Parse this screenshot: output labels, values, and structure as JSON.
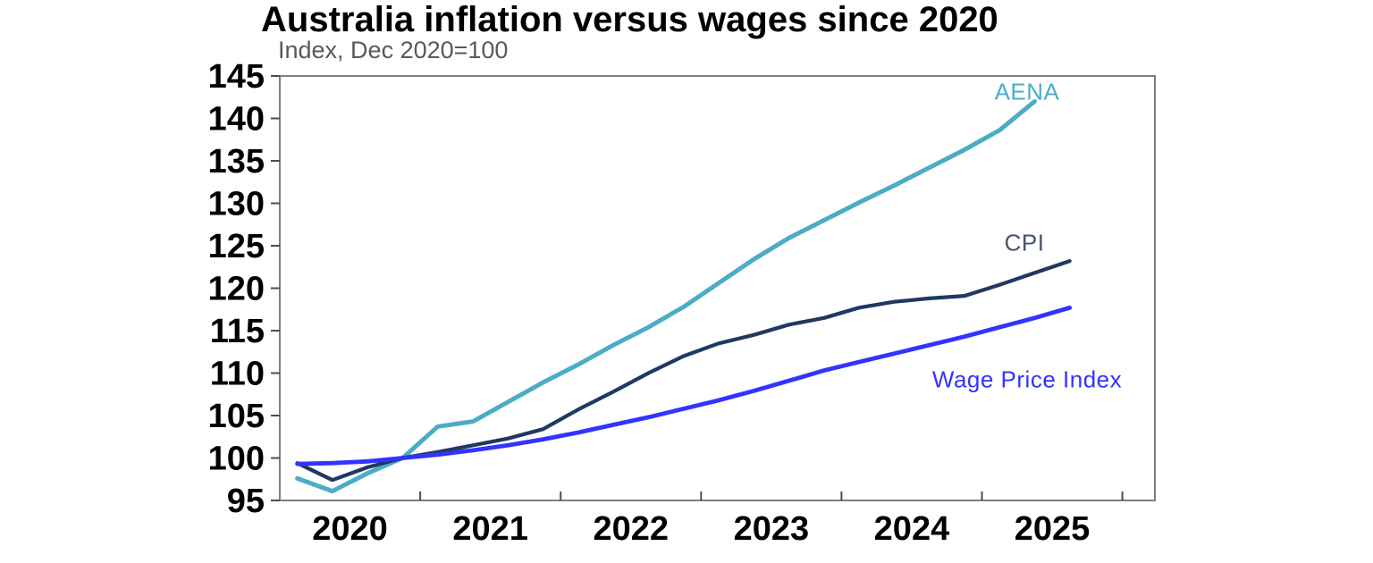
{
  "title": "Australia inflation versus wages since 2020",
  "subtitle": "Index, Dec 2020=100",
  "colors": {
    "title": "#000000",
    "subtitle": "#595959",
    "frame": "#7F7F7F",
    "tick": "#4D4D4D",
    "axis_text": "#000000",
    "aena": "#4BACC6",
    "cpi": "#1F3864",
    "cpi_label": "#44546A",
    "wpi": "#3333FF"
  },
  "chart_data": {
    "type": "line",
    "title": "Australia inflation versus wages since 2020",
    "subtitle": "Index, Dec 2020=100",
    "x_unit": "quarterly",
    "x_range_years": [
      2020,
      2026.25
    ],
    "x_tick_boundaries": [
      2021,
      2022,
      2023,
      2024,
      2025,
      2026
    ],
    "x_tick_labels": [
      "2020",
      "2021",
      "2022",
      "2023",
      "2024",
      "2025"
    ],
    "y_axis_range": [
      95,
      145
    ],
    "y_ticks": [
      95,
      100,
      105,
      110,
      115,
      120,
      125,
      130,
      135,
      140,
      145
    ],
    "grid": false,
    "legend_position": "inline-end-of-line-labels",
    "series": [
      {
        "name": "AENA",
        "color": "#4BACC6",
        "quarters": [
          "2020-Q1",
          "2020-Q2",
          "2020-Q3",
          "2020-Q4",
          "2021-Q1",
          "2021-Q2",
          "2021-Q3",
          "2021-Q4",
          "2022-Q1",
          "2022-Q2",
          "2022-Q3",
          "2022-Q4",
          "2023-Q1",
          "2023-Q2",
          "2023-Q3",
          "2023-Q4",
          "2024-Q1",
          "2024-Q2",
          "2024-Q3",
          "2024-Q4",
          "2025-Q1",
          "2025-Q2"
        ],
        "values": [
          97.6,
          96.1,
          98.2,
          100.0,
          103.7,
          104.3,
          106.6,
          108.9,
          111.0,
          113.3,
          115.4,
          117.8,
          120.6,
          123.4,
          125.9,
          128.0,
          130.1,
          132.1,
          134.2,
          136.3,
          138.6,
          142.0
        ]
      },
      {
        "name": "CPI",
        "color": "#1F3864",
        "quarters": [
          "2020-Q1",
          "2020-Q2",
          "2020-Q3",
          "2020-Q4",
          "2021-Q1",
          "2021-Q2",
          "2021-Q3",
          "2021-Q4",
          "2022-Q1",
          "2022-Q2",
          "2022-Q3",
          "2022-Q4",
          "2023-Q1",
          "2023-Q2",
          "2023-Q3",
          "2023-Q4",
          "2024-Q1",
          "2024-Q2",
          "2024-Q3",
          "2024-Q4",
          "2025-Q1",
          "2025-Q2",
          "2025-Q3"
        ],
        "values": [
          99.4,
          97.4,
          98.9,
          100.0,
          100.7,
          101.5,
          102.3,
          103.4,
          105.7,
          107.8,
          110.0,
          112.0,
          113.5,
          114.5,
          115.7,
          116.5,
          117.7,
          118.4,
          118.8,
          119.1,
          120.4,
          121.8,
          123.2
        ]
      },
      {
        "name": "Wage Price Index",
        "color": "#3333FF",
        "quarters": [
          "2020-Q1",
          "2020-Q2",
          "2020-Q3",
          "2020-Q4",
          "2021-Q1",
          "2021-Q2",
          "2021-Q3",
          "2021-Q4",
          "2022-Q1",
          "2022-Q2",
          "2022-Q3",
          "2022-Q4",
          "2023-Q1",
          "2023-Q2",
          "2023-Q3",
          "2023-Q4",
          "2024-Q1",
          "2024-Q2",
          "2024-Q3",
          "2024-Q4",
          "2025-Q1",
          "2025-Q2",
          "2025-Q3"
        ],
        "values": [
          99.3,
          99.4,
          99.6,
          100.0,
          100.4,
          100.9,
          101.5,
          102.2,
          103.0,
          103.9,
          104.8,
          105.8,
          106.8,
          107.9,
          109.1,
          110.3,
          111.3,
          112.3,
          113.3,
          114.3,
          115.4,
          116.5,
          117.7
        ]
      }
    ]
  }
}
